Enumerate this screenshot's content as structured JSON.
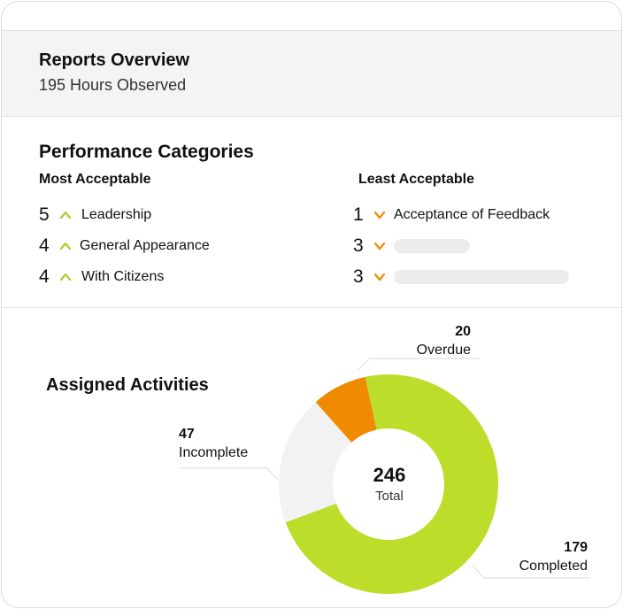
{
  "header": {
    "title": "Reports Overview",
    "subtitle": "195 Hours Observed"
  },
  "performance": {
    "title": "Performance Categories",
    "most": {
      "title": "Most Acceptable",
      "items": [
        {
          "value": "5",
          "label": "Leadership"
        },
        {
          "value": "4",
          "label": "General Appearance"
        },
        {
          "value": "4",
          "label": "With Citizens"
        }
      ]
    },
    "least": {
      "title": "Least Acceptable",
      "items": [
        {
          "value": "1",
          "label": "Acceptance of Feedback"
        },
        {
          "value": "3",
          "label": ""
        },
        {
          "value": "3",
          "label": ""
        }
      ]
    }
  },
  "activities": {
    "title": "Assigned Activities",
    "total_value": "246",
    "total_label": "Total",
    "segments": [
      {
        "name": "Completed",
        "value": "179",
        "color": "#bcdd2a"
      },
      {
        "name": "Incomplete",
        "value": "47",
        "color": "#f2f2f2"
      },
      {
        "name": "Overdue",
        "value": "20",
        "color": "#f08a00"
      }
    ]
  },
  "colors": {
    "up_arrow": "#a8cf2a",
    "down_arrow": "#f08a00"
  }
}
